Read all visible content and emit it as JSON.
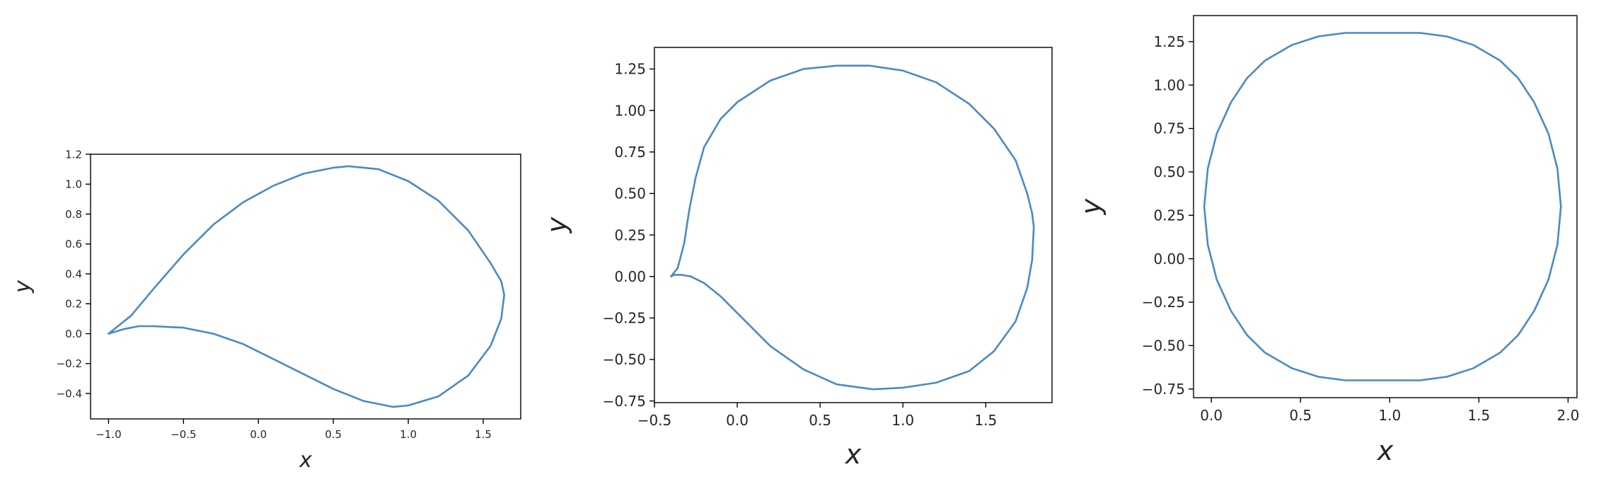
{
  "chart_data": [
    {
      "type": "line",
      "xlabel": "x",
      "ylabel": "y",
      "xlim": [
        -1.12,
        1.75
      ],
      "ylim": [
        -0.57,
        1.2
      ],
      "xticks": [
        -1.0,
        -0.5,
        0.0,
        0.5,
        1.0,
        1.5
      ],
      "xtick_labels": [
        "−1.0",
        "−0.5",
        "0.0",
        "0.5",
        "1.0",
        "1.5"
      ],
      "yticks": [
        -0.4,
        -0.2,
        0.0,
        0.2,
        0.4,
        0.6,
        0.8,
        1.0,
        1.2
      ],
      "ytick_labels": [
        "−0.4",
        "−0.2",
        "0.0",
        "0.2",
        "0.4",
        "0.6",
        "0.8",
        "1.0",
        "1.2"
      ],
      "grid": false,
      "line_color": "#4a8ac4",
      "series": [
        {
          "x": [
            -1.0,
            -0.85,
            -0.7,
            -0.5,
            -0.3,
            -0.1,
            0.1,
            0.3,
            0.5,
            0.6,
            0.8,
            1.0,
            1.2,
            1.4,
            1.55,
            1.62,
            1.64,
            1.62,
            1.55,
            1.4,
            1.2,
            1.0,
            0.9,
            0.7,
            0.5,
            0.3,
            0.1,
            -0.1,
            -0.3,
            -0.5,
            -0.7,
            -0.8,
            -0.9,
            -1.0
          ],
          "y": [
            0.0,
            0.12,
            0.3,
            0.53,
            0.73,
            0.88,
            0.99,
            1.07,
            1.11,
            1.12,
            1.1,
            1.02,
            0.89,
            0.69,
            0.47,
            0.35,
            0.26,
            0.1,
            -0.08,
            -0.28,
            -0.42,
            -0.48,
            -0.49,
            -0.45,
            -0.37,
            -0.27,
            -0.17,
            -0.07,
            0.0,
            0.04,
            0.05,
            0.05,
            0.03,
            0.0
          ]
        }
      ]
    },
    {
      "type": "line",
      "xlabel": "x",
      "ylabel": "y",
      "xlim": [
        -0.5,
        1.9
      ],
      "ylim": [
        -0.76,
        1.38
      ],
      "xticks": [
        -0.5,
        0.0,
        0.5,
        1.0,
        1.5
      ],
      "xtick_labels": [
        "−0.5",
        "0.0",
        "0.5",
        "1.0",
        "1.5"
      ],
      "yticks": [
        -0.75,
        -0.5,
        -0.25,
        0.0,
        0.25,
        0.5,
        0.75,
        1.0,
        1.25
      ],
      "ytick_labels": [
        "−0.75",
        "−0.50",
        "−0.25",
        "0.00",
        "0.25",
        "0.50",
        "0.75",
        "1.00",
        "1.25"
      ],
      "grid": false,
      "line_color": "#4a8ac4",
      "series": [
        {
          "x": [
            -0.4,
            -0.36,
            -0.32,
            -0.29,
            -0.25,
            -0.2,
            -0.1,
            0.0,
            0.2,
            0.4,
            0.6,
            0.8,
            1.0,
            1.2,
            1.4,
            1.55,
            1.68,
            1.75,
            1.78,
            1.79,
            1.78,
            1.75,
            1.68,
            1.55,
            1.4,
            1.2,
            1.0,
            0.82,
            0.6,
            0.4,
            0.2,
            0.05,
            -0.1,
            -0.2,
            -0.28,
            -0.34,
            -0.38,
            -0.4
          ],
          "y": [
            0.0,
            0.05,
            0.2,
            0.4,
            0.6,
            0.78,
            0.95,
            1.05,
            1.18,
            1.25,
            1.27,
            1.27,
            1.24,
            1.17,
            1.04,
            0.89,
            0.7,
            0.5,
            0.38,
            0.3,
            0.1,
            -0.07,
            -0.27,
            -0.45,
            -0.57,
            -0.64,
            -0.67,
            -0.68,
            -0.65,
            -0.56,
            -0.42,
            -0.27,
            -0.12,
            -0.04,
            0.0,
            0.01,
            0.01,
            0.0
          ]
        }
      ]
    },
    {
      "type": "line",
      "xlabel": "x",
      "ylabel": "y",
      "xlim": [
        -0.1,
        2.05
      ],
      "ylim": [
        -0.8,
        1.4
      ],
      "xticks": [
        0.0,
        0.5,
        1.0,
        1.5,
        2.0
      ],
      "xtick_labels": [
        "0.0",
        "0.5",
        "1.0",
        "1.5",
        "2.0"
      ],
      "yticks": [
        -0.75,
        -0.5,
        -0.25,
        0.0,
        0.25,
        0.5,
        0.75,
        1.0,
        1.25
      ],
      "ytick_labels": [
        "−0.75",
        "−0.50",
        "−0.25",
        "0.00",
        "0.25",
        "0.50",
        "0.75",
        "1.00",
        "1.25"
      ],
      "grid": false,
      "line_color": "#4a8ac4",
      "series": [
        {
          "x": [
            -0.04,
            -0.02,
            0.03,
            0.11,
            0.2,
            0.3,
            0.45,
            0.6,
            0.75,
            0.96,
            1.17,
            1.32,
            1.47,
            1.62,
            1.72,
            1.81,
            1.89,
            1.94,
            1.96,
            1.94,
            1.89,
            1.81,
            1.72,
            1.62,
            1.47,
            1.32,
            1.17,
            0.96,
            0.75,
            0.6,
            0.45,
            0.3,
            0.2,
            0.11,
            0.03,
            -0.02,
            -0.04
          ],
          "y": [
            0.3,
            0.52,
            0.72,
            0.9,
            1.04,
            1.14,
            1.23,
            1.28,
            1.3,
            1.3,
            1.3,
            1.28,
            1.23,
            1.14,
            1.04,
            0.9,
            0.72,
            0.52,
            0.3,
            0.08,
            -0.12,
            -0.3,
            -0.44,
            -0.54,
            -0.63,
            -0.68,
            -0.7,
            -0.7,
            -0.7,
            -0.68,
            -0.63,
            -0.54,
            -0.44,
            -0.3,
            -0.12,
            0.08,
            0.3
          ]
        }
      ]
    }
  ]
}
